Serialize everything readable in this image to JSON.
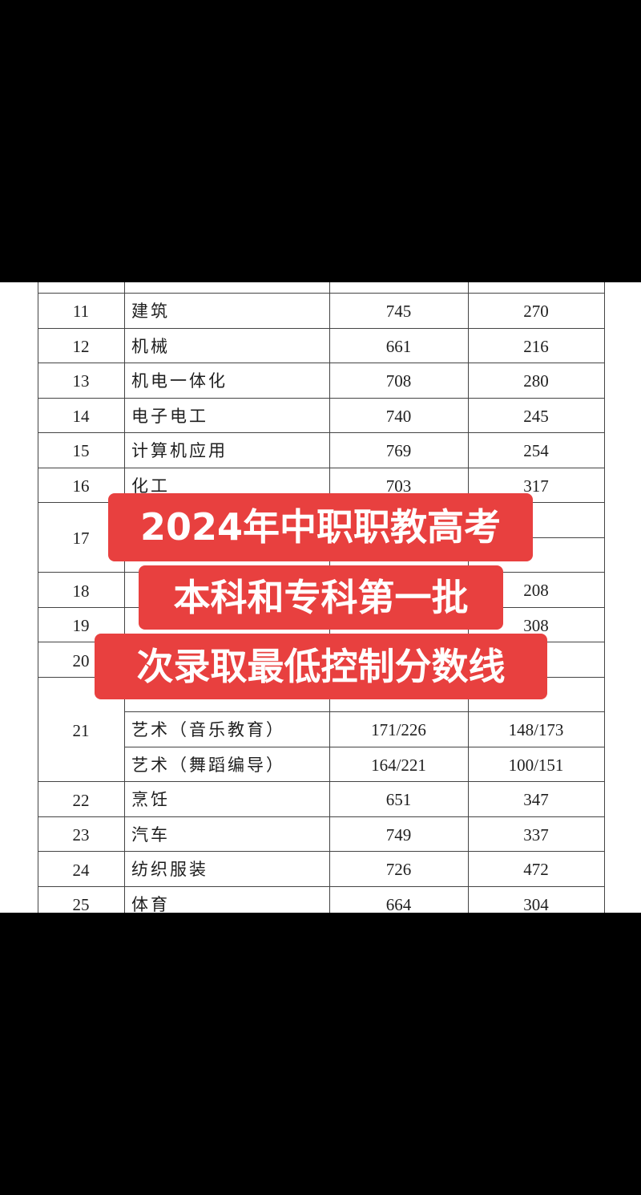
{
  "overlay": {
    "lines": [
      "2024年中职职教高考",
      "本科和专科第一批",
      "次录取最低控制分数线"
    ]
  },
  "table": {
    "groups": [
      {
        "code": "11",
        "items": [
          {
            "name": "建筑",
            "a": "745",
            "b": "270"
          }
        ]
      },
      {
        "code": "12",
        "items": [
          {
            "name": "机械",
            "a": "661",
            "b": "216"
          }
        ]
      },
      {
        "code": "13",
        "items": [
          {
            "name": "机电一体化",
            "a": "708",
            "b": "280"
          }
        ]
      },
      {
        "code": "14",
        "items": [
          {
            "name": "电子电工",
            "a": "740",
            "b": "245"
          }
        ]
      },
      {
        "code": "15",
        "items": [
          {
            "name": "计算机应用",
            "a": "769",
            "b": "254"
          }
        ]
      },
      {
        "code": "16",
        "items": [
          {
            "name": "化工",
            "a": "703",
            "b": "317"
          }
        ]
      },
      {
        "code": "17",
        "items": [
          {},
          {}
        ]
      },
      {
        "code": "18",
        "items": [
          {
            "b": "208"
          }
        ]
      },
      {
        "code": "19",
        "items": [
          {
            "b": "308"
          }
        ]
      },
      {
        "code": "20",
        "items": [
          {}
        ]
      },
      {
        "code": "21",
        "items": [
          {},
          {
            "name": "艺术（音乐教育）",
            "a": "171/226",
            "b": "148/173"
          },
          {
            "name": "艺术（舞蹈编导）",
            "a": "164/221",
            "b": "100/151"
          }
        ]
      },
      {
        "code": "22",
        "items": [
          {
            "name": "烹饪",
            "a": "651",
            "b": "347"
          }
        ]
      },
      {
        "code": "23",
        "items": [
          {
            "name": "汽车",
            "a": "749",
            "b": "337"
          }
        ]
      },
      {
        "code": "24",
        "items": [
          {
            "name": "纺织服装",
            "a": "726",
            "b": "472"
          }
        ]
      },
      {
        "code": "25",
        "items": [
          {
            "name": "体育",
            "a": "664",
            "b": "304"
          }
        ]
      }
    ]
  }
}
